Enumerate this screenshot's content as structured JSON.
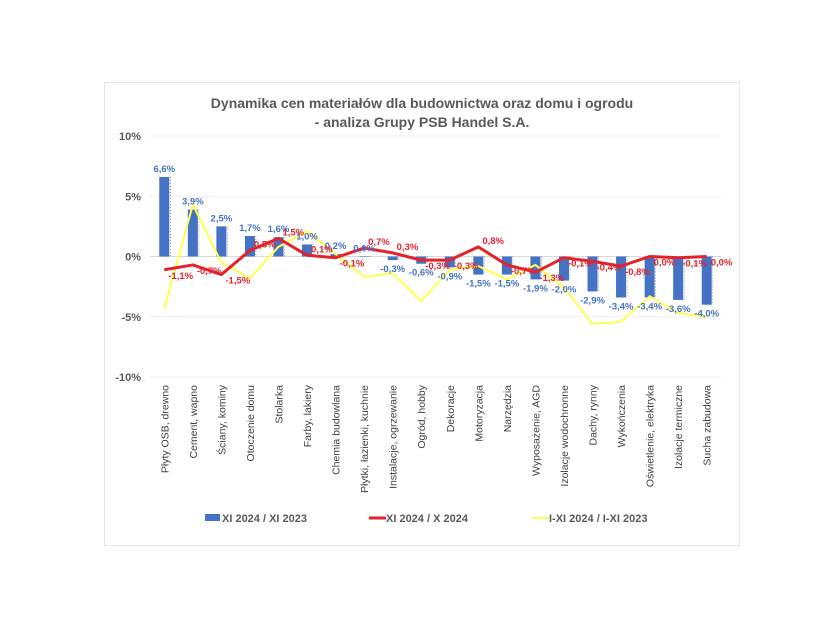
{
  "chart_data": {
    "type": "bar",
    "title": "Dynamika cen materiałów dla budownictwa oraz domu i ogrodu",
    "subtitle": "- analiza Grupy PSB Handel S.A.",
    "xlabel": "",
    "ylabel": "",
    "ylim": [
      -10,
      10
    ],
    "yticks": [
      10,
      5,
      0,
      -5,
      -10
    ],
    "ytick_labels": [
      "10%",
      "5%",
      "0%",
      "-5%",
      "-10%"
    ],
    "grid": true,
    "legend_position": "bottom",
    "categories": [
      "Płyty OSB, drewno",
      "Cement, wapno",
      "Ściany, kominy",
      "Otoczenie domu",
      "Stolarka",
      "Farby, lakiery",
      "Chemia budowlana",
      "Płytki, łazienki, kuchnie",
      "Instalacje, ogrzewanie",
      "Ogród, hobby",
      "Dekoracje",
      "Motoryzacja",
      "Narzędzia",
      "Wyposażenie, AGD",
      "Izolacje wodochronne",
      "Dachy, rynny",
      "Wykończenia",
      "Oświetlenie, elektryka",
      "Izolacje termiczne",
      "Sucha zabudowa"
    ],
    "series": [
      {
        "name": "XI 2024 / XI 2023",
        "kind": "bar",
        "color": "#4472c4",
        "values": [
          6.6,
          3.9,
          2.5,
          1.7,
          1.6,
          1.0,
          0.2,
          0.0,
          -0.3,
          -0.6,
          -0.9,
          -1.5,
          -1.5,
          -1.9,
          -2.0,
          -2.9,
          -3.4,
          -3.4,
          -3.6,
          -4.0
        ],
        "labels": [
          "6,6%",
          "3,9%",
          "2,5%",
          "1,7%",
          "1,6%",
          "1,0%",
          "0,2%",
          "0,0%",
          "-0,3%",
          "-0,6%",
          "-0,9%",
          "-1,5%",
          "-1,5%",
          "-1,9%",
          "-2,0%",
          "-2,9%",
          "-3,4%",
          "-3,4%",
          "-3,6%",
          "-4,0%"
        ]
      },
      {
        "name": "XI 2024 / X 2024",
        "kind": "line",
        "color": "#e3222b",
        "values": [
          -1.1,
          -0.7,
          -1.5,
          0.5,
          1.5,
          0.1,
          -0.1,
          0.7,
          0.3,
          -0.3,
          -0.3,
          0.8,
          -0.7,
          -1.3,
          -0.1,
          -0.4,
          -0.8,
          0.0,
          -0.1,
          0.0
        ],
        "labels": [
          "-1,1%",
          "-0,7%",
          "-1,5%",
          "0,5%",
          "1,5%",
          "0,1%",
          "-0,1%",
          "0,7%",
          "0,3%",
          "-0,3%",
          "-0,3%",
          "0,8%",
          "-0,7%",
          "-1,3%",
          "-0,1%",
          "-0,4%",
          "-0,8%",
          "0,0%",
          "-0,1%",
          "0,0%"
        ]
      },
      {
        "name": "I-XI 2024 / I-XI 2023",
        "kind": "line",
        "color": "#ffff4d",
        "values": [
          -4.3,
          4.3,
          -0.5,
          -1.8,
          0.8,
          2.1,
          0.2,
          -1.7,
          -1.4,
          -3.7,
          -1.1,
          -0.8,
          -1.9,
          -0.7,
          -2.6,
          -5.6,
          -5.4,
          -3.3,
          -4.7,
          -5.0
        ]
      }
    ]
  },
  "legend": [
    {
      "label": "XI 2024 / XI 2023",
      "kind": "bar",
      "color": "#4472c4"
    },
    {
      "label": "XI 2024 / X 2024",
      "kind": "line",
      "color": "#e3222b"
    },
    {
      "label": "I-XI 2024 / I-XI 2023",
      "kind": "line",
      "color": "#ffff4d"
    }
  ]
}
